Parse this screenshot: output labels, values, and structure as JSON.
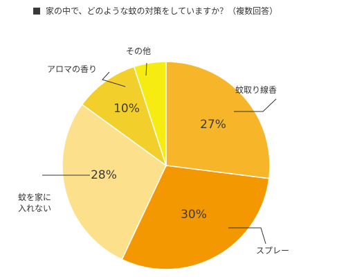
{
  "chart_data": {
    "type": "pie",
    "title": "家の中で、どのような蚊の対策をしていますか？（複数回答）",
    "start_angle": "12 o'clock, clockwise",
    "slices": [
      {
        "name": "蚊取り線香",
        "value": 27,
        "value_label": "27%",
        "color": "#F7B52A"
      },
      {
        "name": "スプレー",
        "value": 30,
        "value_label": "30%",
        "color": "#F39800"
      },
      {
        "name": "蚊を家に入れない",
        "name_lines": [
          "蚊を家に",
          "入れない"
        ],
        "value": 28,
        "value_label": "28%",
        "color": "#FDE08B"
      },
      {
        "name": "アロマの香り",
        "value": 10,
        "value_label": "10%",
        "color": "#F2CF2A"
      },
      {
        "name": "その他",
        "value": 5,
        "value_label": "",
        "color": "#F7EC12"
      }
    ]
  }
}
